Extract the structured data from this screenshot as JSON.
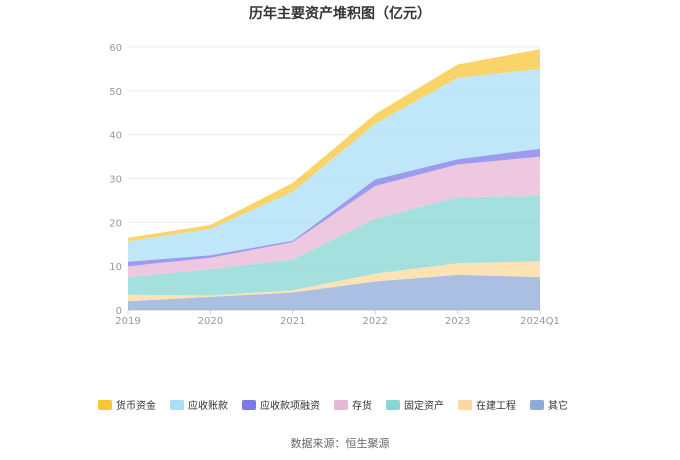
{
  "chart_data": {
    "type": "area",
    "stacked": true,
    "title": "历年主要资产堆积图（亿元）",
    "categories": [
      "2019",
      "2020",
      "2021",
      "2022",
      "2023",
      "2024Q1"
    ],
    "ylim": [
      0,
      60
    ],
    "yticks": [
      0,
      10,
      20,
      30,
      40,
      50,
      60
    ],
    "grid": true,
    "legend_position": "bottom",
    "series": [
      {
        "name": "其它",
        "color": "#8fa9d9",
        "values": [
          2.0,
          3.0,
          4.0,
          6.5,
          8.0,
          7.5
        ]
      },
      {
        "name": "在建工程",
        "color": "#fbd89c",
        "values": [
          1.5,
          0.3,
          0.5,
          1.8,
          2.7,
          3.6
        ]
      },
      {
        "name": "固定资产",
        "color": "#86d6d3",
        "values": [
          4.0,
          6.0,
          7.0,
          12.5,
          15.0,
          14.9
        ]
      },
      {
        "name": "存货",
        "color": "#e8b6d6",
        "values": [
          2.5,
          2.6,
          4.0,
          7.5,
          7.5,
          9.0
        ]
      },
      {
        "name": "应收款项融资",
        "color": "#7b7be8",
        "values": [
          1.0,
          0.6,
          0.3,
          1.5,
          1.2,
          1.8
        ]
      },
      {
        "name": "应收账款",
        "color": "#a9def7",
        "values": [
          4.7,
          6.0,
          11.2,
          12.7,
          18.6,
          18.2
        ]
      },
      {
        "name": "货币资金",
        "color": "#f8c535",
        "values": [
          0.8,
          0.9,
          2.0,
          2.2,
          3.0,
          4.5
        ]
      }
    ],
    "legend_order": [
      "货币资金",
      "应收账款",
      "应收款项融资",
      "存货",
      "固定资产",
      "在建工程",
      "其它"
    ]
  },
  "source_text": "数据来源：恒生聚源"
}
